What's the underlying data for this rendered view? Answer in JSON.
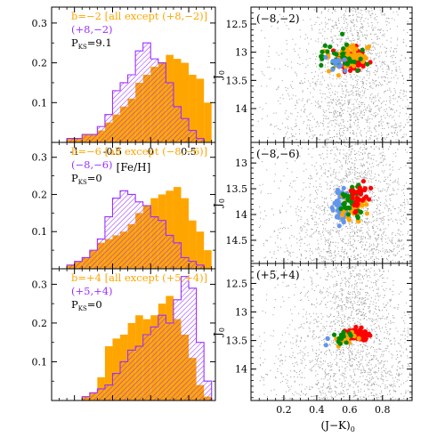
{
  "colors": {
    "orange": "#FFA500",
    "purple": "#9B30FF",
    "hatch_brown": "#C0502A",
    "gray": "#9a9a9a",
    "red": "#FF0000",
    "green": "#008800",
    "blue": "#6495ED",
    "black": "#000000"
  },
  "chart_data": [
    {
      "type": "bar",
      "panel": "hist-top",
      "xlabel": "[Fe/H]",
      "ylabel": "",
      "xlim": [
        -1.3,
        0.85
      ],
      "ylim": [
        0,
        0.34
      ],
      "xticks": [
        -1,
        -0.5,
        0,
        0.5
      ],
      "xtick_labels": [
        "-1",
        "-0.5",
        "0",
        "0.5"
      ],
      "yticks": [
        0.1,
        0.2,
        0.3
      ],
      "ytick_labels": [
        "0.1",
        "0.2",
        "0.3"
      ],
      "bin_start": -1.1,
      "bin_width": 0.1,
      "legend": {
        "line1": "b=−2 [all except (+8,−2)]",
        "line2": "(+8,−2)",
        "pks": "P",
        "pks_sub": "KS",
        "pks_val": "=9.1"
      },
      "series": [
        {
          "name": "b=−2 [all except (+8,−2)]",
          "style": "filled",
          "values": [
            0.01,
            0.01,
            0.02,
            0.02,
            0.03,
            0.05,
            0.07,
            0.09,
            0.11,
            0.15,
            0.17,
            0.19,
            0.2,
            0.22,
            0.21,
            0.2,
            0.17,
            0.16,
            0.1
          ]
        },
        {
          "name": "(+8,−2)",
          "style": "hatched",
          "values": [
            0.01,
            0.01,
            0.02,
            0.02,
            0.04,
            0.07,
            0.13,
            0.15,
            0.17,
            0.23,
            0.25,
            0.21,
            0.2,
            0.15,
            0.09,
            0.06,
            0.03,
            0.01,
            0.0
          ]
        }
      ]
    },
    {
      "type": "bar",
      "panel": "hist-middle",
      "xlim": [
        -1.3,
        0.85
      ],
      "ylim": [
        0,
        0.34
      ],
      "yticks": [
        0.1,
        0.2,
        0.3
      ],
      "ytick_labels": [
        "0.1",
        "0.2",
        "0.3"
      ],
      "bin_start": -1.1,
      "bin_width": 0.1,
      "legend": {
        "line1": "b=−6 [all except (−8,−6)]",
        "line2": "(−8,−6)",
        "pks": "P",
        "pks_sub": "KS",
        "pks_val": "=0"
      },
      "series": [
        {
          "name": "b=−6 [all except (−8,−6)]",
          "style": "filled",
          "values": [
            0.01,
            0.02,
            0.03,
            0.05,
            0.07,
            0.08,
            0.09,
            0.1,
            0.12,
            0.15,
            0.17,
            0.19,
            0.2,
            0.21,
            0.22,
            0.19,
            0.13,
            0.1,
            0.05
          ]
        },
        {
          "name": "(−8,−6)",
          "style": "hatched",
          "values": [
            0.01,
            0.02,
            0.03,
            0.05,
            0.08,
            0.14,
            0.19,
            0.21,
            0.2,
            0.18,
            0.17,
            0.14,
            0.13,
            0.09,
            0.07,
            0.03,
            0.02,
            0.01,
            0.0
          ]
        }
      ]
    },
    {
      "type": "bar",
      "panel": "hist-bottom",
      "xlim": [
        -1.3,
        0.85
      ],
      "ylim": [
        0,
        0.34
      ],
      "yticks": [
        0.1,
        0.2,
        0.3
      ],
      "ytick_labels": [
        "0.1",
        "0.2",
        "0.3"
      ],
      "bin_start": -1.1,
      "bin_width": 0.1,
      "legend": {
        "line1": "b=+4 [all except (+5,+4)]",
        "line2": "(+5,+4)",
        "pks": "P",
        "pks_sub": "KS",
        "pks_val": "=0"
      },
      "series": [
        {
          "name": "b=+4 [all except (+5,+4)]",
          "style": "filled",
          "values": [
            0.0,
            0.0,
            0.01,
            0.02,
            0.06,
            0.14,
            0.16,
            0.17,
            0.2,
            0.22,
            0.21,
            0.22,
            0.25,
            0.27,
            0.21,
            0.17,
            0.11,
            0.04,
            0.01
          ]
        },
        {
          "name": "(+5,+4)",
          "style": "hatched",
          "values": [
            0.0,
            0.0,
            0.01,
            0.02,
            0.03,
            0.04,
            0.07,
            0.1,
            0.13,
            0.14,
            0.17,
            0.19,
            0.22,
            0.2,
            0.26,
            0.32,
            0.29,
            0.15,
            0.05
          ]
        }
      ]
    },
    {
      "type": "scatter",
      "panel": "cmd-top",
      "label": "(−8,−2)",
      "ylabel": "J",
      "ylabel_sub": "0",
      "xlim": [
        0.0,
        0.98
      ],
      "ylim": [
        14.6,
        12.2
      ],
      "yticks": [
        12.5,
        13,
        13.5,
        14
      ],
      "ytick_labels": [
        "12.5",
        "13",
        "13.5",
        "14"
      ],
      "background": {
        "x_center": 0.62,
        "x_spread": 0.2,
        "y_range": [
          12.2,
          14.6
        ],
        "count": 1600
      },
      "stars": [
        {
          "color": "red",
          "x_center": 0.62,
          "x_spread": 0.1,
          "y_center": 13.15,
          "y_spread": 0.2,
          "count": 75
        },
        {
          "color": "orange",
          "x_center": 0.6,
          "x_spread": 0.12,
          "y_center": 13.1,
          "y_spread": 0.22,
          "count": 55
        },
        {
          "color": "green",
          "x_center": 0.55,
          "x_spread": 0.15,
          "y_center": 13.1,
          "y_spread": 0.25,
          "count": 32
        },
        {
          "color": "blue",
          "x_center": 0.52,
          "x_spread": 0.08,
          "y_center": 13.2,
          "y_spread": 0.15,
          "count": 12
        }
      ]
    },
    {
      "type": "scatter",
      "panel": "cmd-middle",
      "label": "(−8,−6)",
      "ylabel": "J",
      "ylabel_sub": "0",
      "xlim": [
        0.0,
        0.98
      ],
      "ylim": [
        14.95,
        12.6
      ],
      "yticks": [
        13,
        13.5,
        14,
        14.5
      ],
      "ytick_labels": [
        "13",
        "13.5",
        "14",
        "14.5"
      ],
      "background": {
        "x_center": 0.62,
        "x_spread": 0.2,
        "y_range": [
          12.6,
          14.95
        ],
        "count": 1600
      },
      "stars": [
        {
          "color": "blue",
          "x_center": 0.55,
          "x_spread": 0.05,
          "y_center": 13.85,
          "y_spread": 0.3,
          "count": 65
        },
        {
          "color": "orange",
          "x_center": 0.63,
          "x_spread": 0.07,
          "y_center": 13.8,
          "y_spread": 0.3,
          "count": 40
        },
        {
          "color": "green",
          "x_center": 0.61,
          "x_spread": 0.08,
          "y_center": 13.75,
          "y_spread": 0.32,
          "count": 35
        },
        {
          "color": "red",
          "x_center": 0.66,
          "x_spread": 0.06,
          "y_center": 13.7,
          "y_spread": 0.3,
          "count": 28
        }
      ]
    },
    {
      "type": "scatter",
      "panel": "cmd-bottom",
      "label": "(+5,+4)",
      "ylabel": "J",
      "ylabel_sub": "0",
      "xlabel": "(J−K)",
      "xlabel_sub": "0",
      "xlim": [
        0.0,
        0.98
      ],
      "ylim": [
        14.55,
        12.15
      ],
      "xticks": [
        0.2,
        0.4,
        0.6,
        0.8
      ],
      "xtick_labels": [
        "0.2",
        "0.4",
        "0.6",
        "0.8"
      ],
      "yticks": [
        12.5,
        13,
        13.5,
        14
      ],
      "ytick_labels": [
        "12.5",
        "13",
        "13.5",
        "14"
      ],
      "background": {
        "x_center": 0.62,
        "x_spread": 0.2,
        "y_range": [
          12.15,
          14.55
        ],
        "count": 1800
      },
      "stars": [
        {
          "color": "red",
          "x_center": 0.65,
          "x_spread": 0.07,
          "y_center": 13.4,
          "y_spread": 0.1,
          "count": 95
        },
        {
          "color": "orange",
          "x_center": 0.58,
          "x_spread": 0.06,
          "y_center": 13.45,
          "y_spread": 0.1,
          "count": 14
        },
        {
          "color": "green",
          "x_center": 0.56,
          "x_spread": 0.05,
          "y_center": 13.4,
          "y_spread": 0.12,
          "count": 14
        },
        {
          "color": "blue",
          "x_center": 0.48,
          "x_spread": 0.02,
          "y_center": 13.5,
          "y_spread": 0.05,
          "count": 3
        }
      ]
    }
  ]
}
